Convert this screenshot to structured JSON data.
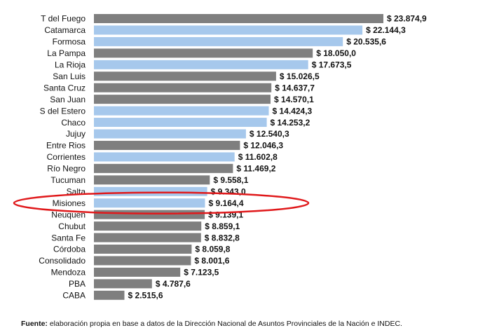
{
  "chart_data": {
    "type": "bar",
    "orientation": "horizontal",
    "categories": [
      "T del Fuego",
      "Catamarca",
      "Formosa",
      "La Pampa",
      "La Rioja",
      "San Luis",
      "Santa Cruz",
      "San Juan",
      "S del Estero",
      "Chaco",
      "Jujuy",
      "Entre Rios",
      "Corrientes",
      "Río Negro",
      "Tucuman",
      "Salta",
      "Misiones",
      "Neuquen",
      "Chubut",
      "Santa Fe",
      "Córdoba",
      "Consolidado",
      "Mendoza",
      "PBA",
      "CABA"
    ],
    "values": [
      23874.9,
      22144.3,
      20535.6,
      18050.0,
      17673.5,
      15026.5,
      14637.7,
      14570.1,
      14424.3,
      14253.2,
      12540.3,
      12046.3,
      11602.8,
      11469.2,
      9558.1,
      9343.0,
      9164.4,
      9139.1,
      8859.1,
      8832.8,
      8059.8,
      8001.6,
      7123.5,
      4787.6,
      2515.6
    ],
    "value_labels": [
      "$ 23.874,9",
      "$ 22.144,3",
      "$ 20.535,6",
      "$ 18.050,0",
      "$ 17.673,5",
      "$ 15.026,5",
      "$ 14.637,7",
      "$ 14.570,1",
      "$ 14.424,3",
      "$ 14.253,2",
      "$ 12.540,3",
      "$ 12.046,3",
      "$ 11.602,8",
      "$ 11.469,2",
      "$ 9.558,1",
      "$ 9.343,0",
      "$ 9.164,4",
      "$ 9.139,1",
      "$ 8.859,1",
      "$ 8.832,8",
      "$ 8.059,8",
      "$ 8.001,6",
      "$ 7.123,5",
      "$ 4.787,6",
      "$ 2.515,6"
    ],
    "bar_colors": [
      "dark",
      "light",
      "light",
      "dark",
      "light",
      "dark",
      "dark",
      "dark",
      "light",
      "light",
      "light",
      "dark",
      "light",
      "dark",
      "dark",
      "light",
      "light",
      "dark",
      "dark",
      "dark",
      "dark",
      "dark",
      "dark",
      "dark",
      "dark"
    ],
    "xlim": [
      0,
      23874.9
    ],
    "grid": false,
    "legend": "none",
    "highlight": "Misiones"
  },
  "colors": {
    "dark": "#7f7f7f",
    "light": "#a6c8ec",
    "highlight": "#e0191b"
  },
  "footer": {
    "source_label": "Fuente:",
    "source_text": " elaboración propia en base a datos de la Dirección Nacional de Asuntos Provinciales de la Nación e INDEC."
  }
}
